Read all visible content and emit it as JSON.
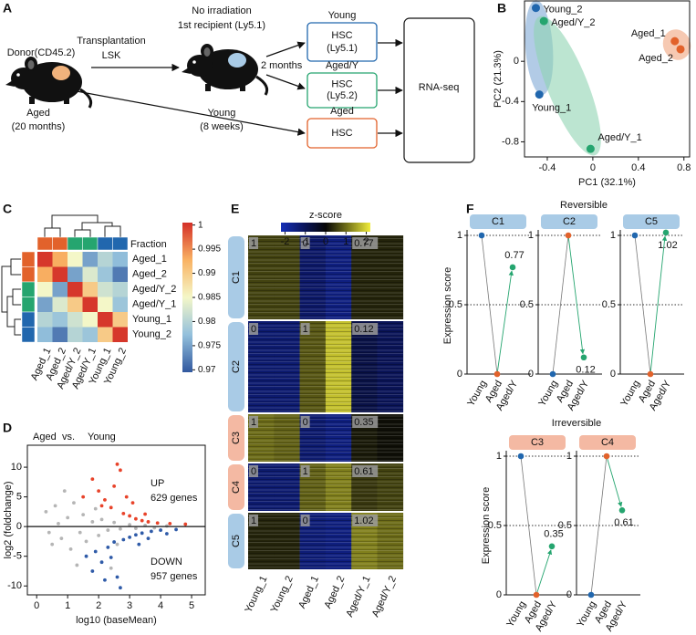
{
  "panel_labels": [
    "A",
    "B",
    "C",
    "D",
    "E",
    "F"
  ],
  "diagram": {
    "donor": {
      "label": "Donor(CD45.2)",
      "age": [
        "Aged",
        "(20 months)"
      ]
    },
    "transplant": [
      "Transplantation",
      "LSK"
    ],
    "recipient": {
      "label": [
        "No irradiation",
        "1st recipient (Ly5.1)"
      ],
      "age": [
        "Young",
        "(8 weeks)"
      ]
    },
    "interval": "2 months",
    "groups": [
      {
        "name": "Young",
        "color": "#2167ae",
        "box": [
          "HSC",
          "(Ly5.1)"
        ]
      },
      {
        "name": "Aged/Y",
        "color": "#25a56f",
        "box": [
          "HSC",
          "(Ly5.2)"
        ]
      },
      {
        "name": "Aged",
        "color": "#e2622b",
        "box": [
          "HSC"
        ]
      }
    ],
    "assay": "RNA-seq"
  },
  "chart_data": [
    {
      "type": "scatter",
      "xlabel": "PC1 (32.1%)",
      "ylabel": "PC2 (21.3%)",
      "xlim": [
        -0.6,
        0.85
      ],
      "xticks": [
        -0.4,
        0,
        0.4,
        0.8
      ],
      "ylim": [
        -0.95,
        0.6
      ],
      "yticks": [
        -0.8,
        -0.4,
        0
      ],
      "points": [
        {
          "label": "Young_2",
          "x": -0.5,
          "y": 0.53,
          "color": "#2167ae"
        },
        {
          "label": "Aged/Y_2",
          "x": -0.43,
          "y": 0.4,
          "color": "#25a56f"
        },
        {
          "label": "Young_1",
          "x": -0.47,
          "y": -0.33,
          "color": "#2167ae"
        },
        {
          "label": "Aged/Y_1",
          "x": -0.02,
          "y": -0.87,
          "color": "#25a56f"
        },
        {
          "label": "Aged_1",
          "x": 0.72,
          "y": 0.2,
          "color": "#e2622b"
        },
        {
          "label": "Aged_2",
          "x": 0.77,
          "y": 0.12,
          "color": "#e2622b"
        }
      ]
    },
    {
      "type": "heatmap",
      "legend_label": "Fraction",
      "rows": [
        "Aged_1",
        "Aged_2",
        "Aged/Y_2",
        "Aged/Y_1",
        "Young_1",
        "Young_2"
      ],
      "columns": [
        "Aged_1",
        "Aged_2",
        "Aged/Y_2",
        "Aged/Y_1",
        "Young_1",
        "Young_2"
      ],
      "row_colors": [
        "#e2622b",
        "#e2622b",
        "#25a56f",
        "#25a56f",
        "#2167ae",
        "#2167ae"
      ],
      "column_colors": [
        "#e2622b",
        "#e2622b",
        "#25a56f",
        "#25a56f",
        "#2167ae",
        "#2167ae"
      ],
      "values": [
        [
          1,
          0.993,
          0.985,
          0.975,
          0.98,
          0.977
        ],
        [
          0.993,
          1,
          0.975,
          0.983,
          0.978,
          0.972
        ],
        [
          0.985,
          0.975,
          1,
          0.99,
          0.982,
          0.98
        ],
        [
          0.975,
          0.983,
          0.99,
          1,
          0.985,
          0.978
        ],
        [
          0.98,
          0.978,
          0.982,
          0.985,
          1,
          0.99
        ],
        [
          0.977,
          0.972,
          0.98,
          0.978,
          0.99,
          1
        ]
      ],
      "colormap": [
        "#31589f",
        "#93c0dc",
        "#f4f7c8",
        "#f9b263",
        "#d42f27"
      ],
      "clim": [
        0.9695,
        1.0005
      ],
      "cticks": [
        1,
        0.995,
        0.99,
        0.985,
        0.98,
        0.975,
        0.97
      ]
    },
    {
      "type": "scatter",
      "title": [
        "Aged",
        "vs.",
        "Young"
      ],
      "xlabel": "log10 (baseMean)",
      "ylabel": "log2 (foldchange)",
      "xlim": [
        -0.3,
        5.44
      ],
      "xticks": [
        0,
        1,
        2,
        3,
        4,
        5
      ],
      "ylim": [
        -11.5,
        13.7
      ],
      "yticks": [
        -10,
        -5,
        0,
        5,
        10
      ],
      "hline": 0,
      "series": [
        {
          "color": "#b5b5b5",
          "x": [
            0.3,
            0.5,
            0.6,
            0.8,
            1.0,
            1.1,
            1.2,
            1.4,
            1.5,
            1.6,
            1.8,
            2.0,
            2.1,
            2.3,
            2.5,
            2.7,
            3.0,
            3.2,
            3.5,
            3.8,
            4.2,
            0.9,
            1.3,
            2.4,
            0.4,
            0.7,
            1.9,
            2.6
          ],
          "values": [
            2.5,
            -3,
            3.5,
            -2,
            1.5,
            -3.8,
            4,
            -1,
            2,
            -2.5,
            0.8,
            -1.5,
            1.2,
            -0.6,
            0.7,
            -0.4,
            0.3,
            -0.3,
            0.2,
            -0.2,
            0.1,
            6,
            -6.5,
            -7,
            -1,
            0.5,
            3,
            -3
          ]
        },
        {
          "color": "#e8432a",
          "x": [
            1.5,
            1.8,
            2.0,
            2.2,
            2.4,
            2.6,
            2.7,
            2.8,
            3.0,
            3.2,
            3.4,
            3.6,
            3.9,
            4.3,
            4.8,
            2.5,
            3.1,
            2.1,
            3.5,
            2.9
          ],
          "values": [
            5,
            8,
            6,
            4.5,
            3.2,
            10.5,
            9.5,
            2.2,
            1.8,
            1.3,
            1.0,
            0.8,
            0.6,
            0.5,
            0.4,
            6.8,
            4,
            3.5,
            2.1,
            5
          ]
        },
        {
          "color": "#2f5ba8",
          "x": [
            1.6,
            1.9,
            2.1,
            2.3,
            2.5,
            2.6,
            2.8,
            3.0,
            3.2,
            3.4,
            3.7,
            4.0,
            4.5,
            2.7,
            2.2,
            3.3,
            2.4,
            1.8,
            3.6,
            4.2
          ],
          "values": [
            -5,
            -4.2,
            -6,
            -3.5,
            -2.6,
            -8.5,
            -2.2,
            -1.8,
            -1.4,
            -1.1,
            -0.8,
            -0.6,
            -0.5,
            -10.3,
            -9,
            -3,
            -5.2,
            -7.5,
            -2,
            -1.2
          ]
        }
      ],
      "annotations": [
        {
          "text": [
            "UP",
            "629 genes"
          ],
          "color": "#e8432a"
        },
        {
          "text": [
            "DOWN",
            "957 genes"
          ],
          "color": "#2f5ba8"
        }
      ]
    },
    {
      "type": "heatmap",
      "legend_label": "z-score",
      "columns": [
        "Young_1",
        "Young_2",
        "Aged_1",
        "Aged_2",
        "Aged/Y_1",
        "Aged/Y_2"
      ],
      "column_colors": [
        "#2167ae",
        "#2167ae",
        "#e2622b",
        "#e2622b",
        "#25a56f",
        "#25a56f"
      ],
      "clusters": [
        {
          "name": "C1",
          "color": "#a9cbe6",
          "text_color": "#2167ae",
          "scores": [
            1,
            0,
            0.77
          ],
          "values": [
            0.6,
            0.6,
            -1.2,
            -1.5,
            0.3,
            0.3
          ]
        },
        {
          "name": "C2",
          "color": "#a9cbe6",
          "text_color": "#2167ae",
          "scores": [
            0,
            1,
            0.12
          ],
          "values": [
            -1.3,
            -1.3,
            0.8,
            1.8,
            -0.8,
            -1.0
          ]
        },
        {
          "name": "C3",
          "color": "#f4b9a3",
          "text_color": "#e2622b",
          "scores": [
            1,
            0,
            0.35
          ],
          "values": [
            1.0,
            0.9,
            -1.3,
            -1.5,
            0.2,
            0.1
          ]
        },
        {
          "name": "C4",
          "color": "#f4b9a3",
          "text_color": "#e2622b",
          "scores": [
            0,
            1,
            0.61
          ],
          "values": [
            -1.3,
            -1.3,
            0.9,
            1.2,
            0.5,
            0.6
          ]
        },
        {
          "name": "C5",
          "color": "#a9cbe6",
          "text_color": "#2167ae",
          "scores": [
            1,
            0,
            1.02
          ],
          "values": [
            0.3,
            0.3,
            -1.4,
            -1.5,
            1.2,
            1.0
          ]
        }
      ],
      "colormap": [
        "#1530b8",
        "#0b1660",
        "#050505",
        "#77761a",
        "#f0ec3a"
      ],
      "clim": [
        -2.2,
        2.2
      ],
      "cticks": [
        -2,
        -1,
        0,
        1,
        2
      ]
    },
    {
      "type": "dot_line",
      "categories": [
        "Young",
        "Aged",
        "Aged/Y"
      ],
      "category_colors": [
        "#2167ae",
        "#e2622b",
        "#25a56f"
      ],
      "ylim": [
        0,
        1
      ],
      "yticks": [
        0,
        0.5,
        1
      ],
      "groups": [
        {
          "title": "Reversible",
          "ylabel": "Expression score",
          "panels": [
            {
              "name": "C1",
              "color": "#a9cbe6",
              "values": [
                1,
                0,
                0.77
              ]
            },
            {
              "name": "C2",
              "color": "#a9cbe6",
              "values": [
                0,
                1,
                0.12
              ]
            },
            {
              "name": "C5",
              "color": "#a9cbe6",
              "values": [
                1,
                0,
                1.02
              ]
            }
          ]
        },
        {
          "title": "Irreversible",
          "ylabel": "Expression score",
          "panels": [
            {
              "name": "C3",
              "color": "#f4b9a3",
              "values": [
                1,
                0,
                0.35
              ]
            },
            {
              "name": "C4",
              "color": "#f4b9a3",
              "values": [
                0,
                1,
                0.61
              ]
            }
          ]
        }
      ]
    }
  ]
}
